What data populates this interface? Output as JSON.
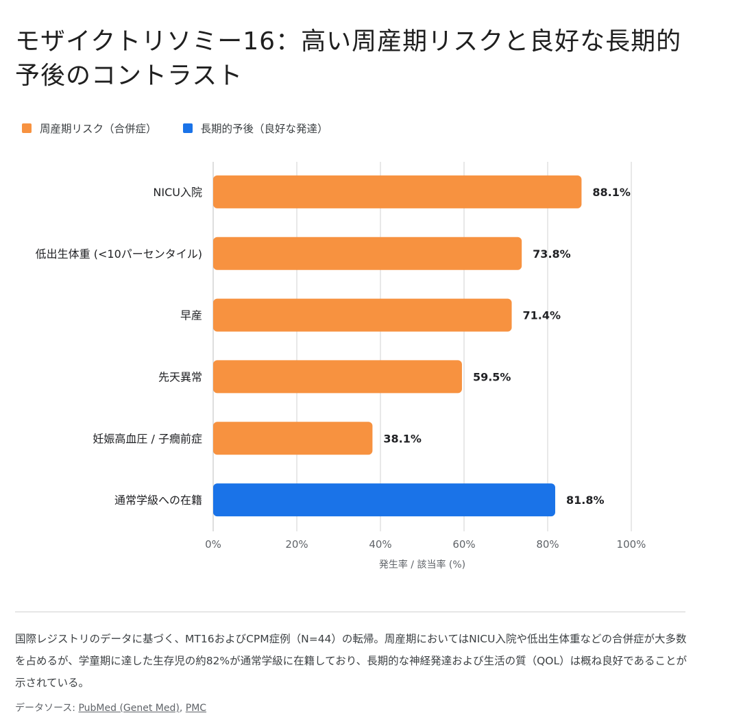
{
  "title": "モザイクトリソミー16：高い周産期リスクと良好な長期的予後のコントラスト",
  "legend": [
    {
      "label": "周産期リスク（合併症）",
      "color": "#f79240"
    },
    {
      "label": "長期的予後（良好な発達）",
      "color": "#1a73e8"
    }
  ],
  "chart_data": {
    "type": "bar",
    "orientation": "horizontal",
    "title": "モザイクトリソミー16：高い周産期リスクと良好な長期的予後のコントラスト",
    "xlabel": "発生率 / 該当率 (%)",
    "ylabel": "",
    "xlim": [
      0,
      100
    ],
    "grid": true,
    "legend_position": "top-left",
    "x_ticks": [
      0,
      20,
      40,
      60,
      80,
      100
    ],
    "x_tick_labels": [
      "0%",
      "20%",
      "40%",
      "60%",
      "80%",
      "100%"
    ],
    "categories": [
      "NICU入院",
      "低出生体重 (<10パーセンタイル)",
      "早産",
      "先天異常",
      "妊娠高血圧 / 子癇前症",
      "通常学級への在籍"
    ],
    "values": [
      88.1,
      73.8,
      71.4,
      59.5,
      38.1,
      81.8
    ],
    "value_labels": [
      "88.1%",
      "73.8%",
      "71.4%",
      "59.5%",
      "38.1%",
      "81.8%"
    ],
    "series_of_bar": [
      "周産期リスク（合併症）",
      "周産期リスク（合併症）",
      "周産期リスク（合併症）",
      "周産期リスク（合併症）",
      "周産期リスク（合併症）",
      "長期的予後（良好な発達）"
    ],
    "colors": [
      "#f79240",
      "#f79240",
      "#f79240",
      "#f79240",
      "#f79240",
      "#1a73e8"
    ]
  },
  "note": "国際レジストリのデータに基づく、MT16およびCPM症例（N=44）の転帰。周産期においてはNICU入院や低出生体重などの合併症が大多数を占めるが、学童期に達した生存児の約82%が通常学級に在籍しており、長期的な神経発達および生活の質（QOL）は概ね良好であることが示されている。",
  "source": {
    "prefix": "データソース: ",
    "links": [
      "PubMed (Genet Med)",
      "PMC"
    ],
    "separator": ", "
  }
}
